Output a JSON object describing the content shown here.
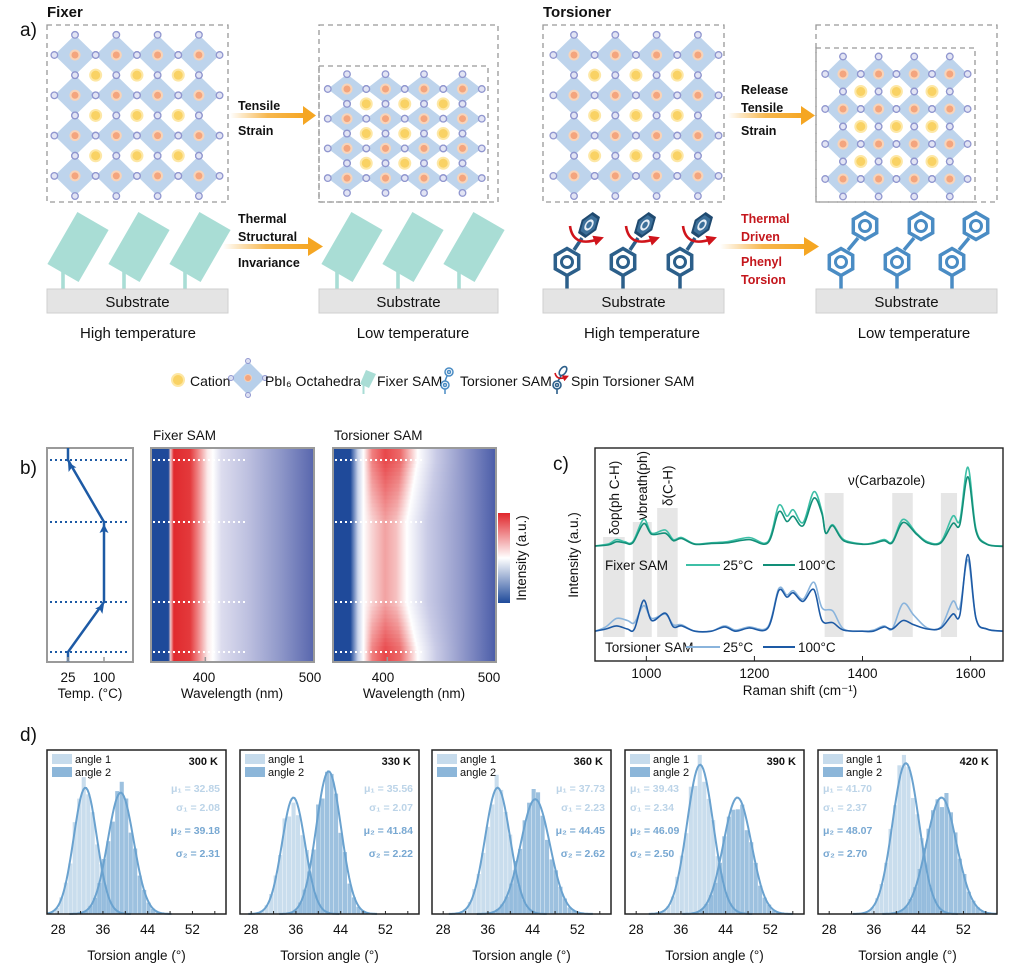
{
  "panel_a": {
    "label": "a)",
    "fixer_title": "Fixer",
    "torsioner_title": "Torsioner",
    "arrow_tensile": [
      "Tensile",
      "Strain"
    ],
    "arrow_thermal_fixer": [
      "Thermal",
      "Structural",
      "Invariance"
    ],
    "arrow_release": [
      "Release",
      "Tensile",
      "Strain"
    ],
    "arrow_thermal_torsioner": [
      "Thermal",
      "Driven",
      "Phenyl",
      "Torsion"
    ],
    "substrate": "Substrate",
    "high_temp": "High temperature",
    "low_temp": "Low temperature",
    "legend": {
      "cation": "Cation",
      "octahedra": "PbI₆ Octahedra",
      "fixer_sam": "Fixer SAM",
      "torsioner_sam": "Torsioner SAM",
      "spin_torsioner_sam": "Spin Torsioner SAM"
    },
    "colors": {
      "octahedron": "#b7cfea",
      "iodide": "#9096cf",
      "lead": "#f4a57e",
      "cation": "#f9d264",
      "fixer_sam": "#a9ddd5",
      "torsioner_dark": "#2c5f8a",
      "torsioner_light": "#4a8cc4",
      "arrow": "#f5a623",
      "torsion_arrow": "#d0141b",
      "substrate": "#e4e4e4"
    }
  },
  "chart_data": [
    {
      "type": "line",
      "panel": "b-temp",
      "panel_label": "b)",
      "xlabel": "Temp. (°C)",
      "xticks": [
        25,
        100
      ],
      "temperature_profile": [
        25,
        25,
        100,
        100,
        25,
        25
      ],
      "color": "#1d5aa5"
    },
    {
      "type": "heatmap",
      "panel": "b-fixer",
      "title": "Fixer SAM",
      "xlabel": "Wavelength (nm)",
      "xlim": [
        350,
        500
      ],
      "xticks": [
        400,
        500
      ]
    },
    {
      "type": "heatmap",
      "panel": "b-torsioner",
      "title": "Torsioner SAM",
      "xlabel": "Wavelength (nm)",
      "xlim": [
        350,
        500
      ],
      "xticks": [
        400,
        500
      ],
      "colorbar_label": "Intensity (a.u.)"
    },
    {
      "type": "line",
      "panel": "c",
      "panel_label": "c)",
      "xlabel": "Raman shift (cm⁻¹)",
      "ylabel": "Intensity (a.u.)",
      "xlim": [
        905,
        1660
      ],
      "ylim": [
        0,
        1
      ],
      "xticks": [
        1000,
        1200,
        1400,
        1600
      ],
      "band_labels": [
        "δop(ph C-H)",
        "νbreath(ph)",
        "δ(C-H)",
        "ν(Carbazole)"
      ],
      "bands": [
        [
          920,
          960
        ],
        [
          975,
          1010
        ],
        [
          1020,
          1058
        ],
        [
          1330,
          1365
        ],
        [
          1455,
          1493
        ],
        [
          1545,
          1575
        ]
      ],
      "groups": [
        {
          "name": "Fixer SAM",
          "legend": [
            "25°C",
            "100°C"
          ]
        },
        {
          "name": "Torsioner SAM",
          "legend": [
            "25°C",
            "100°C"
          ]
        }
      ],
      "series": [
        {
          "name": "Fixer SAM 25°C",
          "color": "#3dbfa6",
          "x": [
            905,
            930,
            945,
            960,
            975,
            995,
            1010,
            1035,
            1050,
            1065,
            1090,
            1120,
            1150,
            1190,
            1225,
            1245,
            1260,
            1272,
            1290,
            1310,
            1325,
            1332,
            1345,
            1365,
            1400,
            1420,
            1440,
            1455,
            1475,
            1500,
            1520,
            1545,
            1567,
            1580,
            1595,
            1610,
            1630,
            1660
          ],
          "y": [
            0.54,
            0.55,
            0.57,
            0.56,
            0.56,
            0.665,
            0.6,
            0.615,
            0.57,
            0.58,
            0.55,
            0.555,
            0.56,
            0.58,
            0.56,
            0.73,
            0.68,
            0.71,
            0.65,
            0.795,
            0.7,
            0.6,
            0.64,
            0.57,
            0.55,
            0.555,
            0.57,
            0.56,
            0.665,
            0.6,
            0.56,
            0.56,
            0.68,
            0.66,
            0.91,
            0.62,
            0.55,
            0.54
          ]
        },
        {
          "name": "Fixer SAM 100°C",
          "color": "#128f78",
          "x": [
            905,
            930,
            945,
            960,
            975,
            995,
            1010,
            1035,
            1050,
            1065,
            1090,
            1120,
            1150,
            1190,
            1225,
            1245,
            1260,
            1272,
            1290,
            1310,
            1325,
            1332,
            1345,
            1365,
            1400,
            1420,
            1440,
            1455,
            1475,
            1500,
            1520,
            1545,
            1567,
            1580,
            1595,
            1610,
            1630,
            1660
          ],
          "y": [
            0.54,
            0.545,
            0.56,
            0.555,
            0.555,
            0.645,
            0.595,
            0.6,
            0.565,
            0.575,
            0.548,
            0.552,
            0.555,
            0.57,
            0.555,
            0.7,
            0.655,
            0.68,
            0.635,
            0.765,
            0.69,
            0.6,
            0.635,
            0.565,
            0.548,
            0.552,
            0.565,
            0.555,
            0.65,
            0.595,
            0.555,
            0.555,
            0.645,
            0.64,
            0.865,
            0.61,
            0.548,
            0.538
          ]
        },
        {
          "name": "Torsioner SAM 25°C",
          "color": "#8ab4dc",
          "x": [
            905,
            925,
            945,
            965,
            978,
            995,
            1010,
            1035,
            1050,
            1065,
            1090,
            1120,
            1145,
            1165,
            1190,
            1225,
            1245,
            1260,
            1272,
            1290,
            1310,
            1325,
            1345,
            1365,
            1400,
            1420,
            1440,
            1455,
            1475,
            1495,
            1520,
            1545,
            1567,
            1580,
            1595,
            1610,
            1630,
            1660
          ],
          "y": [
            0.14,
            0.16,
            0.2,
            0.19,
            0.18,
            0.26,
            0.2,
            0.22,
            0.17,
            0.17,
            0.14,
            0.14,
            0.165,
            0.145,
            0.16,
            0.16,
            0.34,
            0.31,
            0.33,
            0.29,
            0.37,
            0.25,
            0.235,
            0.15,
            0.14,
            0.145,
            0.165,
            0.15,
            0.27,
            0.215,
            0.155,
            0.16,
            0.28,
            0.25,
            0.475,
            0.2,
            0.15,
            0.14
          ]
        },
        {
          "name": "Torsioner SAM 100°C",
          "color": "#1d5aa5",
          "x": [
            905,
            925,
            945,
            965,
            978,
            995,
            1010,
            1035,
            1050,
            1065,
            1090,
            1120,
            1145,
            1165,
            1190,
            1225,
            1245,
            1260,
            1272,
            1290,
            1310,
            1325,
            1345,
            1365,
            1400,
            1420,
            1440,
            1455,
            1475,
            1495,
            1520,
            1545,
            1567,
            1580,
            1595,
            1610,
            1630,
            1660
          ],
          "y": [
            0.14,
            0.15,
            0.165,
            0.15,
            0.15,
            0.285,
            0.19,
            0.225,
            0.16,
            0.165,
            0.14,
            0.14,
            0.16,
            0.14,
            0.155,
            0.155,
            0.33,
            0.3,
            0.32,
            0.28,
            0.335,
            0.19,
            0.18,
            0.145,
            0.14,
            0.14,
            0.16,
            0.15,
            0.19,
            0.17,
            0.15,
            0.155,
            0.22,
            0.215,
            0.5,
            0.2,
            0.15,
            0.14
          ]
        }
      ]
    },
    {
      "type": "bar",
      "panel": "d",
      "panel_label": "d)",
      "xlabel": "Torsion angle (°)",
      "xlim": [
        26,
        58
      ],
      "xticks": [
        28,
        36,
        44,
        52
      ],
      "legend": [
        "angle 1",
        "angle 2"
      ],
      "stat_labels": [
        "μ₁ = ",
        "σ₁ = ",
        "μ₂ = ",
        "σ₂ = "
      ],
      "colors": {
        "angle1": "#c6dbec",
        "angle2": "#8cb6d9",
        "fit": "#6aa2cf",
        "stat1": "#bcd4e8",
        "stat2": "#78a8d2"
      },
      "subplots": [
        {
          "temperature": "300 K",
          "mu1": 32.85,
          "sigma1": 2.08,
          "mu2": 39.18,
          "sigma2": 2.31,
          "peak1": 0.77,
          "peak2": 0.74,
          "stats_side": "right"
        },
        {
          "temperature": "330 K",
          "mu1": 35.56,
          "sigma1": 2.07,
          "mu2": 41.84,
          "sigma2": 2.22,
          "peak1": 0.71,
          "peak2": 0.87,
          "stats_side": "right"
        },
        {
          "temperature": "360 K",
          "mu1": 37.73,
          "sigma1": 2.23,
          "mu2": 44.45,
          "sigma2": 2.62,
          "peak1": 0.77,
          "peak2": 0.7,
          "stats_side": "right"
        },
        {
          "temperature": "390 K",
          "mu1": 39.43,
          "sigma1": 2.34,
          "mu2": 46.09,
          "sigma2": 2.5,
          "peak1": 0.91,
          "peak2": 0.71,
          "stats_side": "left"
        },
        {
          "temperature": "420 K",
          "mu1": 41.7,
          "sigma1": 2.37,
          "mu2": 48.07,
          "sigma2": 2.7,
          "peak1": 0.92,
          "peak2": 0.71,
          "stats_side": "left"
        }
      ]
    }
  ]
}
